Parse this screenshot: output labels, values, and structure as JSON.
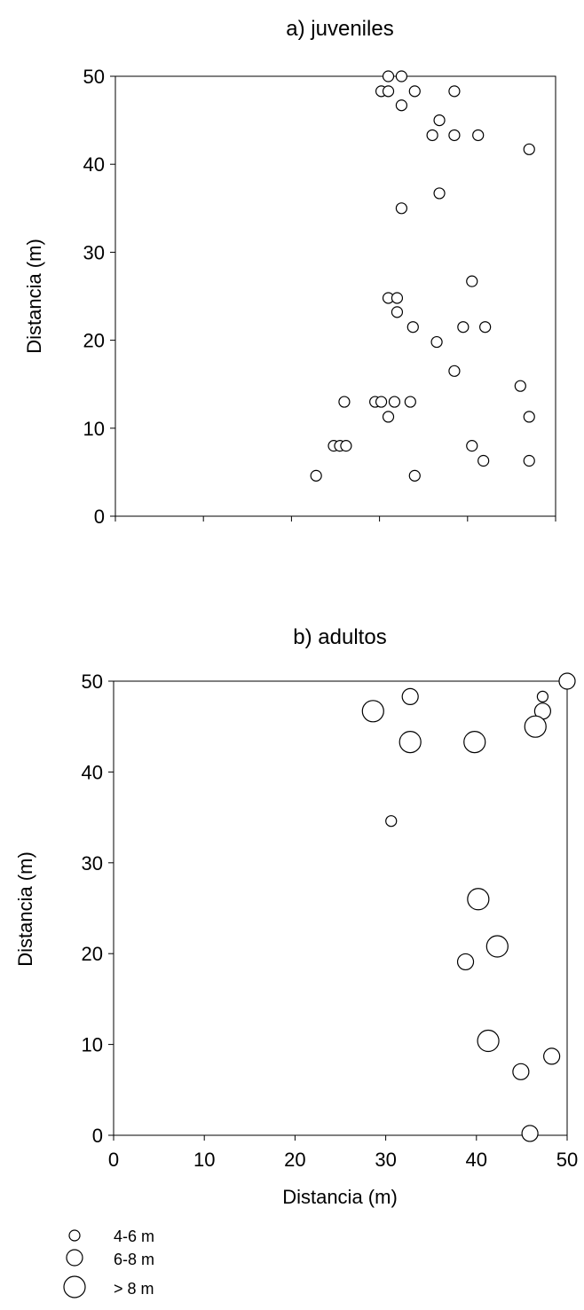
{
  "chart_data": [
    {
      "type": "scatter",
      "title": "a) juveniles",
      "xlabel": "",
      "ylabel": "Distancia (m)",
      "xlim": [
        0,
        50
      ],
      "ylim": [
        0,
        50
      ],
      "x_ticks": [],
      "y_ticks": [
        "0",
        "10",
        "20",
        "30",
        "40",
        "50"
      ],
      "grid": false,
      "points": [
        {
          "x": 31.0,
          "y": 50.0,
          "size": "4-6 m"
        },
        {
          "x": 32.5,
          "y": 50.0,
          "size": "4-6 m"
        },
        {
          "x": 30.2,
          "y": 48.3,
          "size": "4-6 m"
        },
        {
          "x": 31.0,
          "y": 48.3,
          "size": "4-6 m"
        },
        {
          "x": 34.0,
          "y": 48.3,
          "size": "4-6 m"
        },
        {
          "x": 38.5,
          "y": 48.3,
          "size": "4-6 m"
        },
        {
          "x": 32.5,
          "y": 46.7,
          "size": "4-6 m"
        },
        {
          "x": 36.8,
          "y": 45.0,
          "size": "4-6 m"
        },
        {
          "x": 36.0,
          "y": 43.3,
          "size": "4-6 m"
        },
        {
          "x": 38.5,
          "y": 43.3,
          "size": "4-6 m"
        },
        {
          "x": 41.2,
          "y": 43.3,
          "size": "4-6 m"
        },
        {
          "x": 47.0,
          "y": 41.7,
          "size": "4-6 m"
        },
        {
          "x": 36.8,
          "y": 36.7,
          "size": "4-6 m"
        },
        {
          "x": 32.5,
          "y": 35.0,
          "size": "4-6 m"
        },
        {
          "x": 40.5,
          "y": 26.7,
          "size": "4-6 m"
        },
        {
          "x": 31.0,
          "y": 24.8,
          "size": "4-6 m"
        },
        {
          "x": 32.0,
          "y": 24.8,
          "size": "4-6 m"
        },
        {
          "x": 32.0,
          "y": 23.2,
          "size": "4-6 m"
        },
        {
          "x": 33.8,
          "y": 21.5,
          "size": "4-6 m"
        },
        {
          "x": 39.5,
          "y": 21.5,
          "size": "4-6 m"
        },
        {
          "x": 42.0,
          "y": 21.5,
          "size": "4-6 m"
        },
        {
          "x": 36.5,
          "y": 19.8,
          "size": "4-6 m"
        },
        {
          "x": 38.5,
          "y": 16.5,
          "size": "4-6 m"
        },
        {
          "x": 46.0,
          "y": 14.8,
          "size": "4-6 m"
        },
        {
          "x": 26.0,
          "y": 13.0,
          "size": "4-6 m"
        },
        {
          "x": 29.5,
          "y": 13.0,
          "size": "4-6 m"
        },
        {
          "x": 30.2,
          "y": 13.0,
          "size": "4-6 m"
        },
        {
          "x": 31.7,
          "y": 13.0,
          "size": "4-6 m"
        },
        {
          "x": 33.5,
          "y": 13.0,
          "size": "4-6 m"
        },
        {
          "x": 47.0,
          "y": 11.3,
          "size": "4-6 m"
        },
        {
          "x": 31.0,
          "y": 11.3,
          "size": "4-6 m"
        },
        {
          "x": 24.8,
          "y": 8.0,
          "size": "4-6 m"
        },
        {
          "x": 25.5,
          "y": 8.0,
          "size": "4-6 m"
        },
        {
          "x": 26.2,
          "y": 8.0,
          "size": "4-6 m"
        },
        {
          "x": 40.5,
          "y": 8.0,
          "size": "4-6 m"
        },
        {
          "x": 41.8,
          "y": 6.3,
          "size": "4-6 m"
        },
        {
          "x": 47.0,
          "y": 6.3,
          "size": "4-6 m"
        },
        {
          "x": 22.8,
          "y": 4.6,
          "size": "4-6 m"
        },
        {
          "x": 34.0,
          "y": 4.6,
          "size": "4-6 m"
        }
      ]
    },
    {
      "type": "scatter",
      "title": "b) adultos",
      "xlabel": "Distancia (m)",
      "ylabel": "Distancia (m)",
      "xlim": [
        0,
        50
      ],
      "ylim": [
        0,
        50
      ],
      "x_ticks": [
        "0",
        "10",
        "20",
        "30",
        "40",
        "50"
      ],
      "y_ticks": [
        "0",
        "10",
        "20",
        "30",
        "40",
        "50"
      ],
      "grid": false,
      "points": [
        {
          "x": 50.0,
          "y": 50.0,
          "size": "6-8 m"
        },
        {
          "x": 32.7,
          "y": 48.3,
          "size": "6-8 m"
        },
        {
          "x": 47.3,
          "y": 48.3,
          "size": "4-6 m"
        },
        {
          "x": 28.6,
          "y": 46.7,
          "size": "> 8 m"
        },
        {
          "x": 47.3,
          "y": 46.7,
          "size": "6-8 m"
        },
        {
          "x": 46.5,
          "y": 45.0,
          "size": "> 8 m"
        },
        {
          "x": 32.7,
          "y": 43.3,
          "size": "> 8 m"
        },
        {
          "x": 39.8,
          "y": 43.3,
          "size": "> 8 m"
        },
        {
          "x": 30.6,
          "y": 34.6,
          "size": "4-6 m"
        },
        {
          "x": 40.2,
          "y": 26.0,
          "size": "> 8 m"
        },
        {
          "x": 42.3,
          "y": 20.8,
          "size": "> 8 m"
        },
        {
          "x": 38.8,
          "y": 19.1,
          "size": "6-8 m"
        },
        {
          "x": 41.3,
          "y": 10.4,
          "size": "> 8 m"
        },
        {
          "x": 48.3,
          "y": 8.7,
          "size": "6-8 m"
        },
        {
          "x": 44.9,
          "y": 7.0,
          "size": "6-8 m"
        },
        {
          "x": 45.9,
          "y": 0.2,
          "size": "6-8 m"
        }
      ]
    }
  ],
  "legend": {
    "items": [
      {
        "label": "4-6 m",
        "key": "4-6 m"
      },
      {
        "label": "6-8 m",
        "key": "6-8 m"
      },
      {
        "label": "> 8 m",
        "key": "> 8 m"
      }
    ],
    "placement": "bottom-left"
  }
}
